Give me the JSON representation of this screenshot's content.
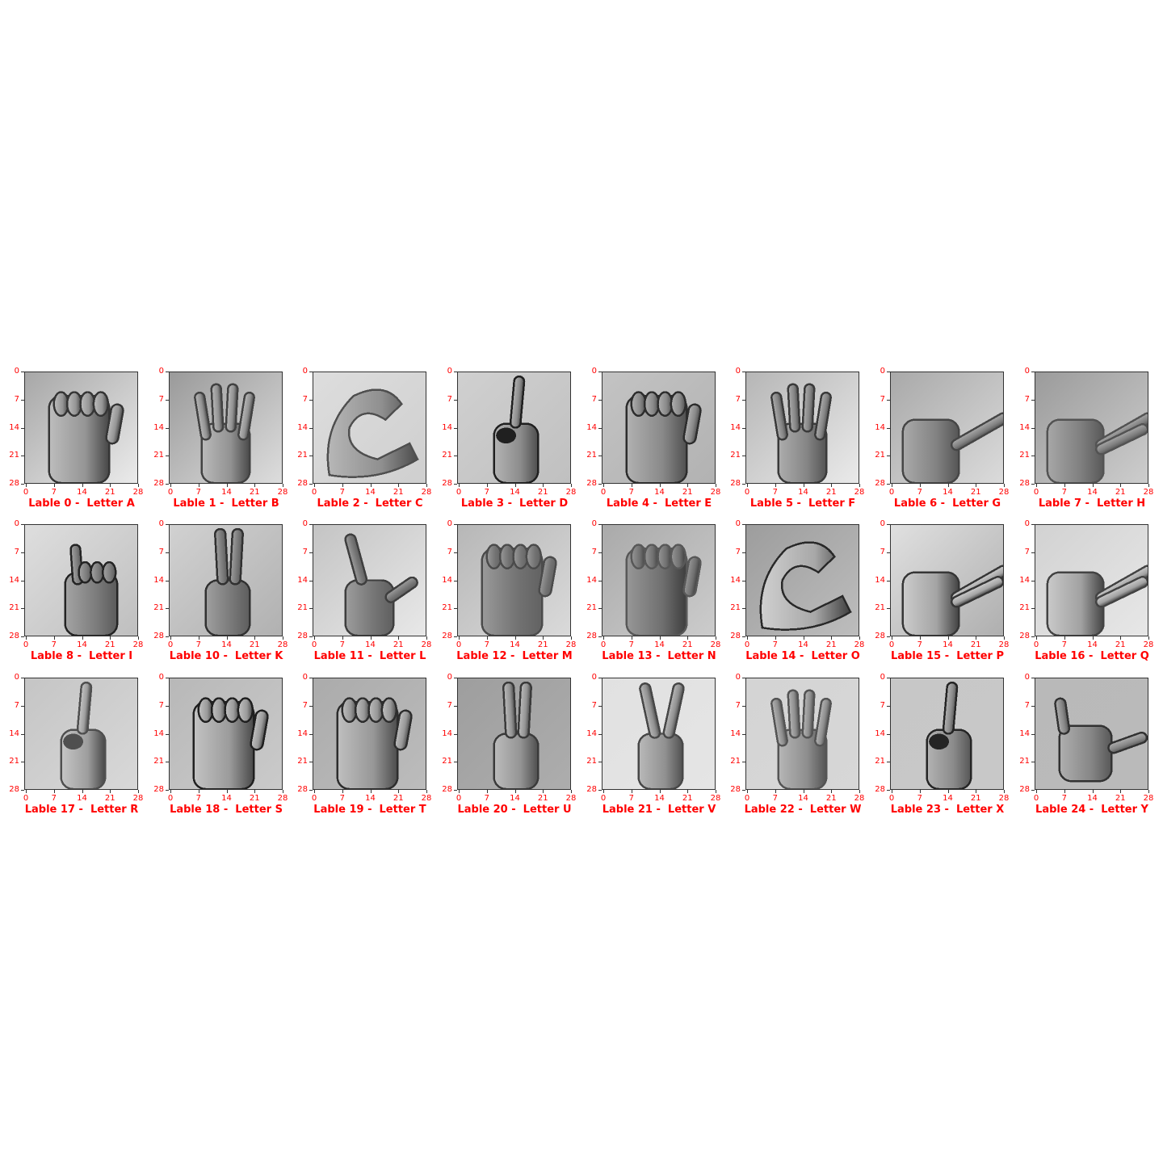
{
  "figure": {
    "tick_color": "#ff0000",
    "caption_color": "#ff0000",
    "axis_ticks": [
      "0",
      "7",
      "14",
      "21",
      "28"
    ],
    "panels": [
      {
        "caption": "Lable 0 -  Letter A",
        "pose": "fist-thumb-side"
      },
      {
        "caption": "Lable 1 -  Letter B",
        "pose": "flat-fingers-up"
      },
      {
        "caption": "Lable 2 -  Letter C",
        "pose": "c-curve"
      },
      {
        "caption": "Lable 3 -  Letter D",
        "pose": "index-up"
      },
      {
        "caption": "Lable 4 -  Letter E",
        "pose": "curled-fingers"
      },
      {
        "caption": "Lable 5 -  Letter F",
        "pose": "three-fingers-up"
      },
      {
        "caption": "Lable 6 -  Letter G",
        "pose": "index-sideways"
      },
      {
        "caption": "Lable 7 -  Letter H",
        "pose": "two-sideways"
      },
      {
        "caption": "Lable 8 -  Letter I",
        "pose": "pinky-up"
      },
      {
        "caption": "Lable 10 -  Letter K",
        "pose": "index-middle-up"
      },
      {
        "caption": "Lable 11 -  Letter L",
        "pose": "l-shape"
      },
      {
        "caption": "Lable 12 -  Letter M",
        "pose": "fist-folded"
      },
      {
        "caption": "Lable 13 -  Letter N",
        "pose": "fist-folded"
      },
      {
        "caption": "Lable 14 -  Letter O",
        "pose": "o-shape"
      },
      {
        "caption": "Lable 15 -  Letter P",
        "pose": "pointing-down"
      },
      {
        "caption": "Lable 16 -  Letter Q",
        "pose": "pointing-down"
      },
      {
        "caption": "Lable 17 -  Letter R",
        "pose": "index-up"
      },
      {
        "caption": "Lable 18 -  Letter S",
        "pose": "fist"
      },
      {
        "caption": "Lable 19 -  Letter T",
        "pose": "fist-thumb-side"
      },
      {
        "caption": "Lable 20 -  Letter U",
        "pose": "two-up-together"
      },
      {
        "caption": "Lable 21 -  Letter V",
        "pose": "v-sign"
      },
      {
        "caption": "Lable 22 -  Letter W",
        "pose": "three-fingers-up"
      },
      {
        "caption": "Lable 23 -  Letter X",
        "pose": "hooked-index"
      },
      {
        "caption": "Lable 24 -  Letter Y",
        "pose": "y-shape"
      }
    ]
  }
}
